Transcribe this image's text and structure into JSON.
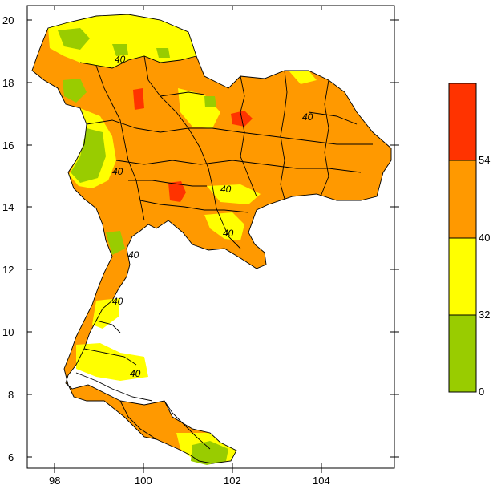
{
  "map": {
    "x_axis": {
      "ticks": [
        "98",
        "100",
        "102",
        "104"
      ],
      "range": [
        97.4,
        105.6
      ]
    },
    "y_axis": {
      "ticks": [
        "6",
        "8",
        "10",
        "12",
        "14",
        "16",
        "18",
        "20"
      ],
      "range": [
        5.6,
        20.4
      ]
    },
    "contour_labels": [
      "40",
      "40",
      "40",
      "40",
      "40",
      "40",
      "40",
      "40"
    ],
    "colors": {
      "green": "#99cc00",
      "yellow": "#ffff00",
      "orange": "#ff9900",
      "red": "#ff3300"
    }
  },
  "colorbar": {
    "levels": [
      "0",
      "32",
      "40",
      "54"
    ],
    "bins": [
      {
        "from": 0,
        "to": 32,
        "color": "#99cc00"
      },
      {
        "from": 32,
        "to": 40,
        "color": "#ffff00"
      },
      {
        "from": 40,
        "to": 54,
        "color": "#ff9900"
      },
      {
        "from": 54,
        "to": null,
        "color": "#ff3300"
      }
    ]
  }
}
